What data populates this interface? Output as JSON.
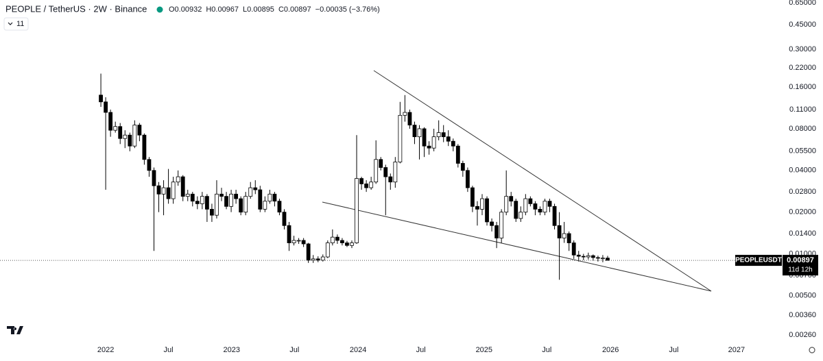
{
  "chart_data": {
    "type": "candlestick",
    "header": {
      "title": "PEOPLE / TetherUS · 2W · Binance",
      "interval": "11",
      "last_labels": [
        "O0.00932",
        "H0.00967",
        "L0.00895",
        "C0.00897",
        "−0.00035 (−3.76%)"
      ]
    },
    "symbol": "PEOPLEUSDT",
    "countdown": "11d 12h",
    "log_scale": true,
    "grid": false,
    "up_color": "#ffffff",
    "down_color": "#000000",
    "open": [
      0.14,
      0.125,
      0.105,
      0.078,
      0.083,
      0.068,
      0.072,
      0.06,
      0.085,
      0.072,
      0.048,
      0.04,
      0.031,
      0.027,
      0.03,
      0.025,
      0.033,
      0.036,
      0.026,
      0.027,
      0.024,
      0.023,
      0.026,
      0.021,
      0.019,
      0.027,
      0.026,
      0.022,
      0.027,
      0.025,
      0.02,
      0.026,
      0.03,
      0.029,
      0.021,
      0.024,
      0.027,
      0.024,
      0.02,
      0.016,
      0.012,
      0.0125,
      0.0125,
      0.0118,
      0.009,
      0.0092,
      0.009,
      0.0095,
      0.012,
      0.0132,
      0.0125,
      0.012,
      0.0115,
      0.012,
      0.035,
      0.032,
      0.03,
      0.033,
      0.048,
      0.042,
      0.036,
      0.033,
      0.046,
      0.1,
      0.105,
      0.085,
      0.07,
      0.08,
      0.06,
      0.058,
      0.07,
      0.075,
      0.07,
      0.065,
      0.06,
      0.045,
      0.04,
      0.03,
      0.022,
      0.021,
      0.025,
      0.017,
      0.016,
      0.013,
      0.02,
      0.026,
      0.024,
      0.018,
      0.02,
      0.025,
      0.023,
      0.021,
      0.02,
      0.024,
      0.022,
      0.016,
      0.013,
      0.014,
      0.012,
      0.0098,
      0.0096,
      0.0095,
      0.0097,
      0.0094,
      0.0093,
      0.00932
    ],
    "high": [
      0.2,
      0.135,
      0.11,
      0.09,
      0.088,
      0.078,
      0.075,
      0.092,
      0.088,
      0.074,
      0.05,
      0.042,
      0.033,
      0.034,
      0.041,
      0.036,
      0.04,
      0.037,
      0.029,
      0.028,
      0.026,
      0.028,
      0.027,
      0.023,
      0.034,
      0.03,
      0.028,
      0.029,
      0.029,
      0.026,
      0.028,
      0.033,
      0.034,
      0.031,
      0.026,
      0.029,
      0.028,
      0.025,
      0.021,
      0.017,
      0.0135,
      0.013,
      0.013,
      0.012,
      0.0098,
      0.0096,
      0.0099,
      0.0125,
      0.015,
      0.0138,
      0.013,
      0.0124,
      0.0125,
      0.072,
      0.036,
      0.034,
      0.036,
      0.066,
      0.05,
      0.044,
      0.038,
      0.05,
      0.125,
      0.14,
      0.11,
      0.09,
      0.085,
      0.082,
      0.065,
      0.08,
      0.092,
      0.085,
      0.078,
      0.068,
      0.062,
      0.047,
      0.042,
      0.031,
      0.024,
      0.027,
      0.026,
      0.018,
      0.017,
      0.021,
      0.04,
      0.028,
      0.025,
      0.022,
      0.027,
      0.026,
      0.024,
      0.022,
      0.025,
      0.025,
      0.023,
      0.02,
      0.017,
      0.0145,
      0.0125,
      0.0105,
      0.01,
      0.0102,
      0.0099,
      0.0097,
      0.0098,
      0.00967
    ],
    "low": [
      0.115,
      0.029,
      0.07,
      0.075,
      0.062,
      0.058,
      0.055,
      0.058,
      0.065,
      0.044,
      0.036,
      0.0105,
      0.02,
      0.019,
      0.023,
      0.023,
      0.031,
      0.024,
      0.024,
      0.022,
      0.021,
      0.021,
      0.017,
      0.017,
      0.018,
      0.024,
      0.021,
      0.02,
      0.023,
      0.019,
      0.019,
      0.025,
      0.027,
      0.02,
      0.02,
      0.023,
      0.022,
      0.019,
      0.015,
      0.0105,
      0.0115,
      0.0118,
      0.0112,
      0.0086,
      0.0086,
      0.0087,
      0.0088,
      0.0093,
      0.0115,
      0.0118,
      0.0115,
      0.0112,
      0.011,
      0.0118,
      0.029,
      0.028,
      0.029,
      0.032,
      0.04,
      0.019,
      0.029,
      0.03,
      0.045,
      0.09,
      0.08,
      0.062,
      0.048,
      0.05,
      0.052,
      0.055,
      0.066,
      0.064,
      0.06,
      0.055,
      0.042,
      0.036,
      0.028,
      0.02,
      0.016,
      0.019,
      0.016,
      0.0145,
      0.011,
      0.012,
      0.019,
      0.022,
      0.017,
      0.017,
      0.019,
      0.022,
      0.019,
      0.019,
      0.019,
      0.02,
      0.015,
      0.0065,
      0.012,
      0.0105,
      0.0092,
      0.0088,
      0.009,
      0.0091,
      0.0089,
      0.0088,
      0.0087,
      0.00895
    ],
    "close": [
      0.125,
      0.105,
      0.078,
      0.083,
      0.068,
      0.072,
      0.06,
      0.085,
      0.072,
      0.048,
      0.04,
      0.031,
      0.027,
      0.03,
      0.025,
      0.033,
      0.036,
      0.026,
      0.027,
      0.024,
      0.023,
      0.026,
      0.021,
      0.019,
      0.027,
      0.026,
      0.022,
      0.027,
      0.025,
      0.02,
      0.026,
      0.03,
      0.029,
      0.021,
      0.024,
      0.027,
      0.024,
      0.02,
      0.016,
      0.012,
      0.0125,
      0.0125,
      0.0118,
      0.009,
      0.0092,
      0.009,
      0.0095,
      0.012,
      0.0132,
      0.0125,
      0.012,
      0.0115,
      0.012,
      0.035,
      0.032,
      0.03,
      0.033,
      0.048,
      0.042,
      0.036,
      0.033,
      0.046,
      0.1,
      0.105,
      0.085,
      0.07,
      0.08,
      0.06,
      0.058,
      0.07,
      0.075,
      0.07,
      0.065,
      0.06,
      0.045,
      0.04,
      0.03,
      0.022,
      0.021,
      0.025,
      0.017,
      0.016,
      0.013,
      0.02,
      0.026,
      0.024,
      0.018,
      0.02,
      0.025,
      0.023,
      0.021,
      0.02,
      0.024,
      0.022,
      0.016,
      0.013,
      0.014,
      0.012,
      0.0098,
      0.0096,
      0.0095,
      0.0097,
      0.0094,
      0.0093,
      0.00932,
      0.00897
    ],
    "xlim": [
      -20.9,
      141.1
    ],
    "xticks": [
      {
        "value": 1.0,
        "label": "2022"
      },
      {
        "value": 14.0,
        "label": "Jul"
      },
      {
        "value": 27.1,
        "label": "2023"
      },
      {
        "value": 40.1,
        "label": "Jul"
      },
      {
        "value": 53.3,
        "label": "2024"
      },
      {
        "value": 66.3,
        "label": "Jul"
      },
      {
        "value": 79.4,
        "label": "2025"
      },
      {
        "value": 92.4,
        "label": "Jul"
      },
      {
        "value": 105.6,
        "label": "2026"
      },
      {
        "value": 118.7,
        "label": "Jul"
      },
      {
        "value": 131.7,
        "label": "2027"
      }
    ],
    "ylim": [
      0.00229,
      0.68
    ],
    "yticks": [
      {
        "value": 0.65,
        "label": "0.65000"
      },
      {
        "value": 0.45,
        "label": "0.45000"
      },
      {
        "value": 0.3,
        "label": "0.30000"
      },
      {
        "value": 0.22,
        "label": "0.22000"
      },
      {
        "value": 0.16,
        "label": "0.16000"
      },
      {
        "value": 0.11,
        "label": "0.11000"
      },
      {
        "value": 0.08,
        "label": "0.08000"
      },
      {
        "value": 0.055,
        "label": "0.05500"
      },
      {
        "value": 0.04,
        "label": "0.04000"
      },
      {
        "value": 0.028,
        "label": "0.02800"
      },
      {
        "value": 0.02,
        "label": "0.02000"
      },
      {
        "value": 0.014,
        "label": "0.01400"
      },
      {
        "value": 0.01,
        "label": "0.01000"
      },
      {
        "value": 0.007,
        "label": "0.00700"
      },
      {
        "value": 0.005,
        "label": "0.00500"
      },
      {
        "value": 0.0036,
        "label": "0.00360"
      },
      {
        "value": 0.0026,
        "label": "0.00260"
      }
    ]
  }
}
